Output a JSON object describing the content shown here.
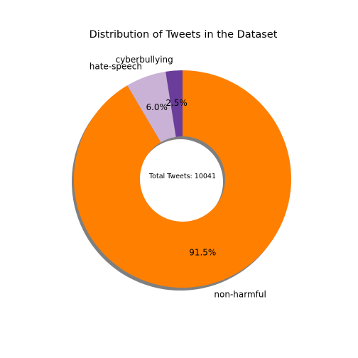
{
  "chart_data": {
    "type": "pie",
    "style": "donut",
    "title": "Distribution of Tweets in the Dataset",
    "center_text": "Total Tweets: 10041",
    "start_angle_deg": 90,
    "direction": "counterclockwise",
    "shadow": true,
    "slices": [
      {
        "label": "cyberbullying",
        "value": 2.5,
        "pct_label": "2.5%",
        "color": "#6a3d9a"
      },
      {
        "label": "hate-speech",
        "value": 6.0,
        "pct_label": "6.0%",
        "color": "#cab2d6"
      },
      {
        "label": "non-harmful",
        "value": 91.5,
        "pct_label": "91.5%",
        "color": "#ff7f00"
      }
    ]
  }
}
